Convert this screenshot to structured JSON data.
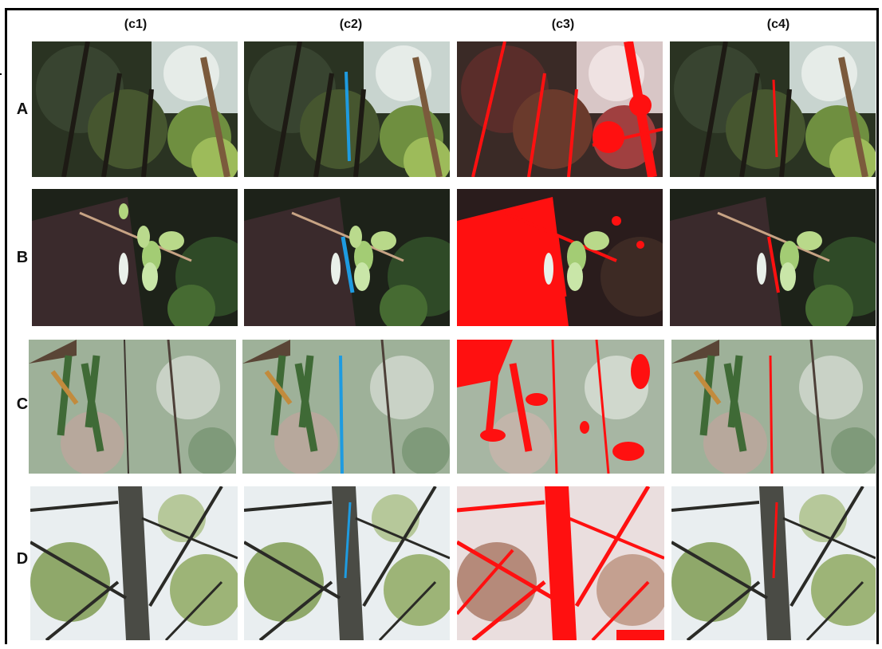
{
  "columns": [
    "(c1)",
    "(c2)",
    "(c3)",
    "(c4)"
  ],
  "rows": [
    "A",
    "B",
    "C",
    "D"
  ],
  "colors": {
    "blue_trace": "#1e9be0",
    "red_mask": "#ff1010",
    "foliage_dark": "#1f2a1c",
    "foliage_light": "#a7c86a",
    "sky": "#e9eef0",
    "bark": "#3c2f2a",
    "blur_bg": "#9eb199"
  }
}
